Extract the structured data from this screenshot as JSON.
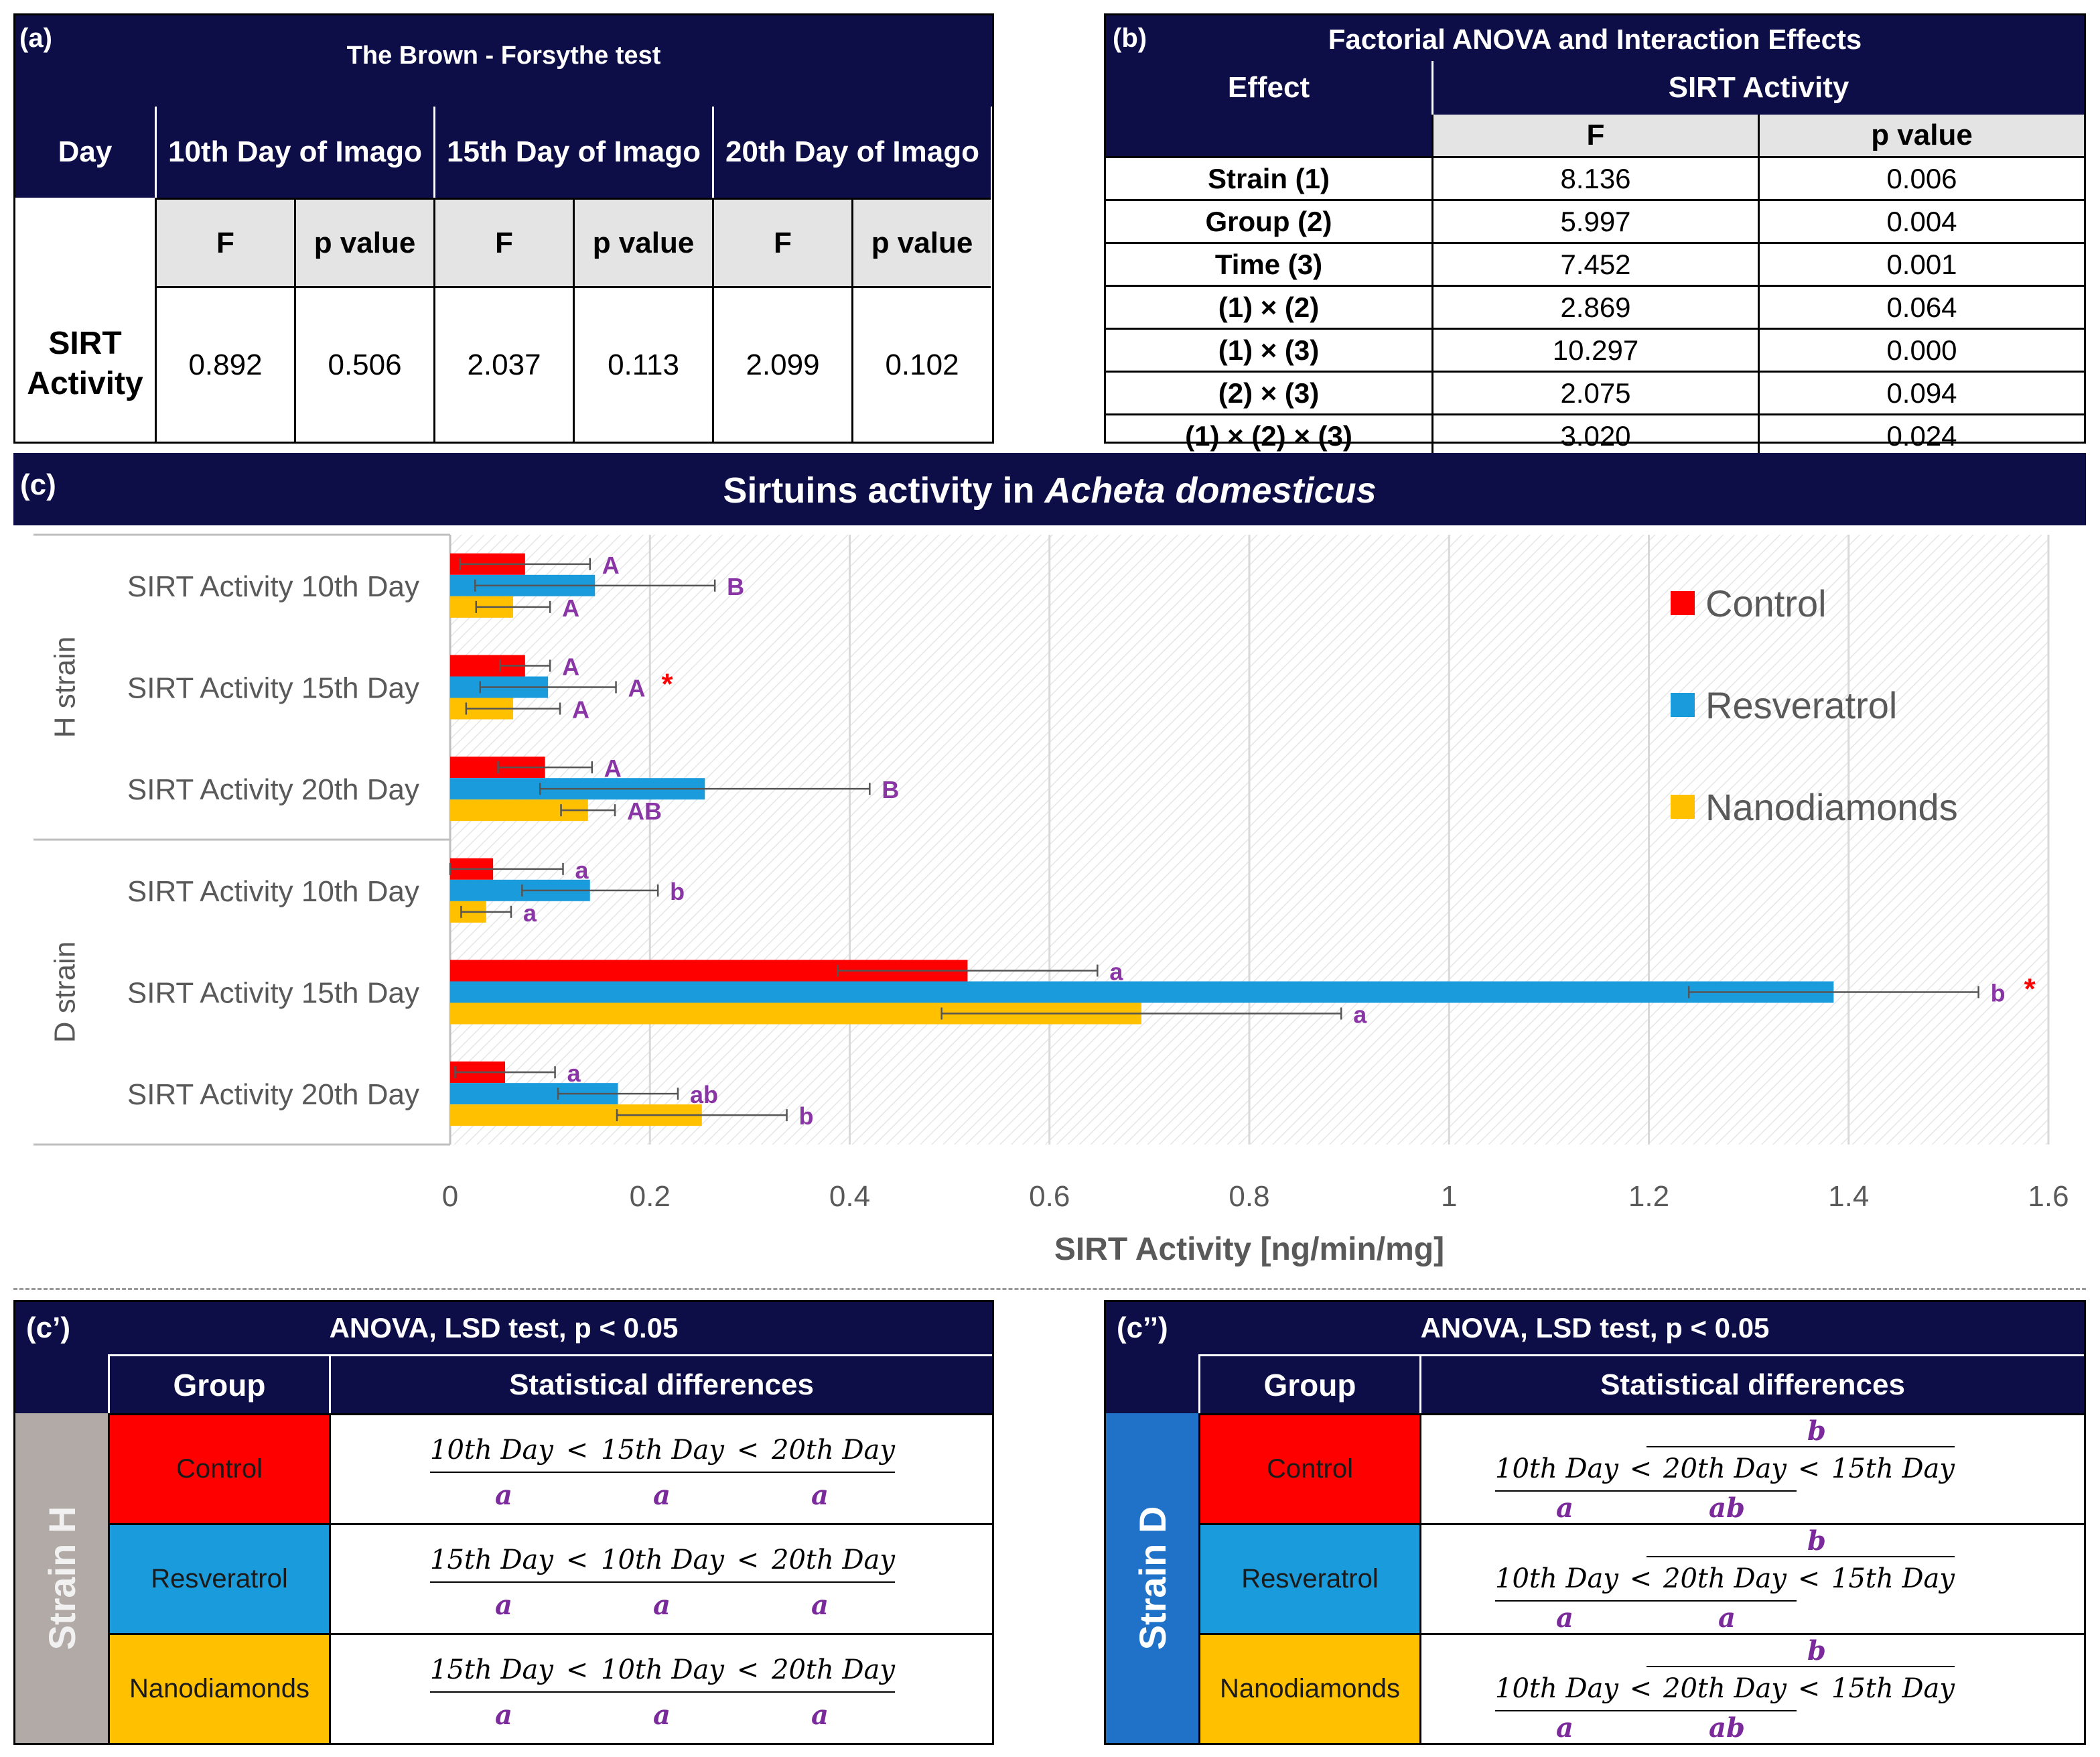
{
  "panel_a": {
    "label": "(a)",
    "title": "The Brown - Forsythe test",
    "day_header": "Day",
    "day_columns": [
      "10th Day of Imago",
      "15th Day of Imago",
      "20th Day of Imago"
    ],
    "sub_headers": [
      "F",
      "p value",
      "F",
      "p value",
      "F",
      "p value"
    ],
    "row_label": "SIRT\nActivity",
    "row_values": [
      "0.892",
      "0.506",
      "2.037",
      "0.113",
      "2.099",
      "0.102"
    ]
  },
  "panel_b": {
    "label": "(b)",
    "title": "Factorial ANOVA and Interaction Effects",
    "effect_header": "Effect",
    "measure_header": "SIRT Activity",
    "sub_headers": [
      "F",
      "p value"
    ],
    "rows": [
      {
        "effect": "Strain (1)",
        "f": "8.136",
        "p": "0.006"
      },
      {
        "effect": "Group (2)",
        "f": "5.997",
        "p": "0.004"
      },
      {
        "effect": "Time (3)",
        "f": "7.452",
        "p": "0.001"
      },
      {
        "effect": "(1) × (2)",
        "f": "2.869",
        "p": "0.064"
      },
      {
        "effect": "(1) × (3)",
        "f": "10.297",
        "p": "0.000"
      },
      {
        "effect": "(2) × (3)",
        "f": "2.075",
        "p": "0.094"
      },
      {
        "effect": "(1) × (2) × (3)",
        "f": "3.020",
        "p": "0.024"
      }
    ]
  },
  "panel_c": {
    "label": "(c)",
    "title_prefix": "Sirtuins activity in ",
    "title_species": "Acheta domesticus"
  },
  "chart_data": {
    "type": "bar",
    "orientation": "horizontal",
    "xlabel": "SIRT Activity [ng/min/mg]",
    "xlim": [
      0,
      1.6
    ],
    "xticks": [
      "0",
      "0.2",
      "0.4",
      "0.6",
      "0.8",
      "1",
      "1.2",
      "1.4",
      "1.6"
    ],
    "xtick_values": [
      0,
      0.2,
      0.4,
      0.6,
      0.8,
      1,
      1.2,
      1.4,
      1.6
    ],
    "legend_position": "top-right",
    "colors": {
      "Control": "#ff0000",
      "Resveratrol": "#1a9bdc",
      "Nanodiamonds": "#ffc000"
    },
    "groups": [
      "H strain",
      "D strain"
    ],
    "categories": [
      "SIRT Activity 10th Day",
      "SIRT Activity 15th Day",
      "SIRT Activity 20th Day",
      "SIRT Activity 10th Day",
      "SIRT Activity 15th Day",
      "SIRT Activity 20th Day"
    ],
    "category_group": [
      0,
      0,
      0,
      1,
      1,
      1
    ],
    "series": [
      {
        "name": "Control",
        "values": [
          0.075,
          0.075,
          0.095,
          0.043,
          0.518,
          0.055
        ],
        "errors": [
          0.065,
          0.025,
          0.047,
          0.07,
          0.13,
          0.05
        ],
        "letters": [
          "A",
          "A",
          "A",
          "a",
          "a",
          "a"
        ]
      },
      {
        "name": "Resveratrol",
        "values": [
          0.145,
          0.098,
          0.255,
          0.14,
          1.385,
          0.168
        ],
        "errors": [
          0.12,
          0.068,
          0.165,
          0.068,
          0.145,
          0.06
        ],
        "letters": [
          "B",
          "A",
          "B",
          "b",
          "b",
          "ab"
        ]
      },
      {
        "name": "Nanodiamonds",
        "values": [
          0.063,
          0.063,
          0.138,
          0.036,
          0.692,
          0.252
        ],
        "errors": [
          0.037,
          0.047,
          0.027,
          0.025,
          0.2,
          0.085
        ],
        "letters": [
          "A",
          "A",
          "AB",
          "a",
          "a",
          "b"
        ]
      }
    ],
    "significance_marks": [
      {
        "category_index": 1,
        "mark": "*"
      },
      {
        "category_index": 4,
        "mark": "*"
      }
    ]
  },
  "panel_c1": {
    "label": "(c’)",
    "title": "ANOVA, LSD test, p < 0.05",
    "group_header": "Group",
    "diff_header": "Statistical differences",
    "strain": "Strain H",
    "strain_color": "#b2aaa6",
    "rows": [
      {
        "group": "Control",
        "color": "#ff0000",
        "days": [
          "10th Day",
          "15th Day",
          "20th Day"
        ],
        "letters": [
          "a",
          "a",
          "a"
        ]
      },
      {
        "group": "Resveratrol",
        "color": "#1a9bdc",
        "days": [
          "15th Day",
          "10th Day",
          "20th Day"
        ],
        "letters": [
          "a",
          "a",
          "a"
        ]
      },
      {
        "group": "Nanodiamonds",
        "color": "#ffc000",
        "days": [
          "15th Day",
          "10th Day",
          "20th Day"
        ],
        "letters": [
          "a",
          "a",
          "a"
        ]
      }
    ]
  },
  "panel_c2": {
    "label": "(c’’)",
    "title": "ANOVA, LSD test, p < 0.05",
    "group_header": "Group",
    "diff_header": "Statistical differences",
    "strain": "Strain D",
    "strain_color": "#1f72c8",
    "rows": [
      {
        "group": "Control",
        "color": "#ff0000",
        "days": [
          "10th Day",
          "20th Day",
          "15th Day"
        ],
        "letters": [
          "a",
          "ab"
        ],
        "top_letter": "b"
      },
      {
        "group": "Resveratrol",
        "color": "#1a9bdc",
        "days": [
          "10th Day",
          "20th Day",
          "15th Day"
        ],
        "letters": [
          "a",
          "a"
        ],
        "top_letter": "b"
      },
      {
        "group": "Nanodiamonds",
        "color": "#ffc000",
        "days": [
          "10th Day",
          "20th Day",
          "15th Day"
        ],
        "letters": [
          "a",
          "ab"
        ],
        "top_letter": "b"
      }
    ]
  },
  "symbols": {
    "lt": "<"
  }
}
